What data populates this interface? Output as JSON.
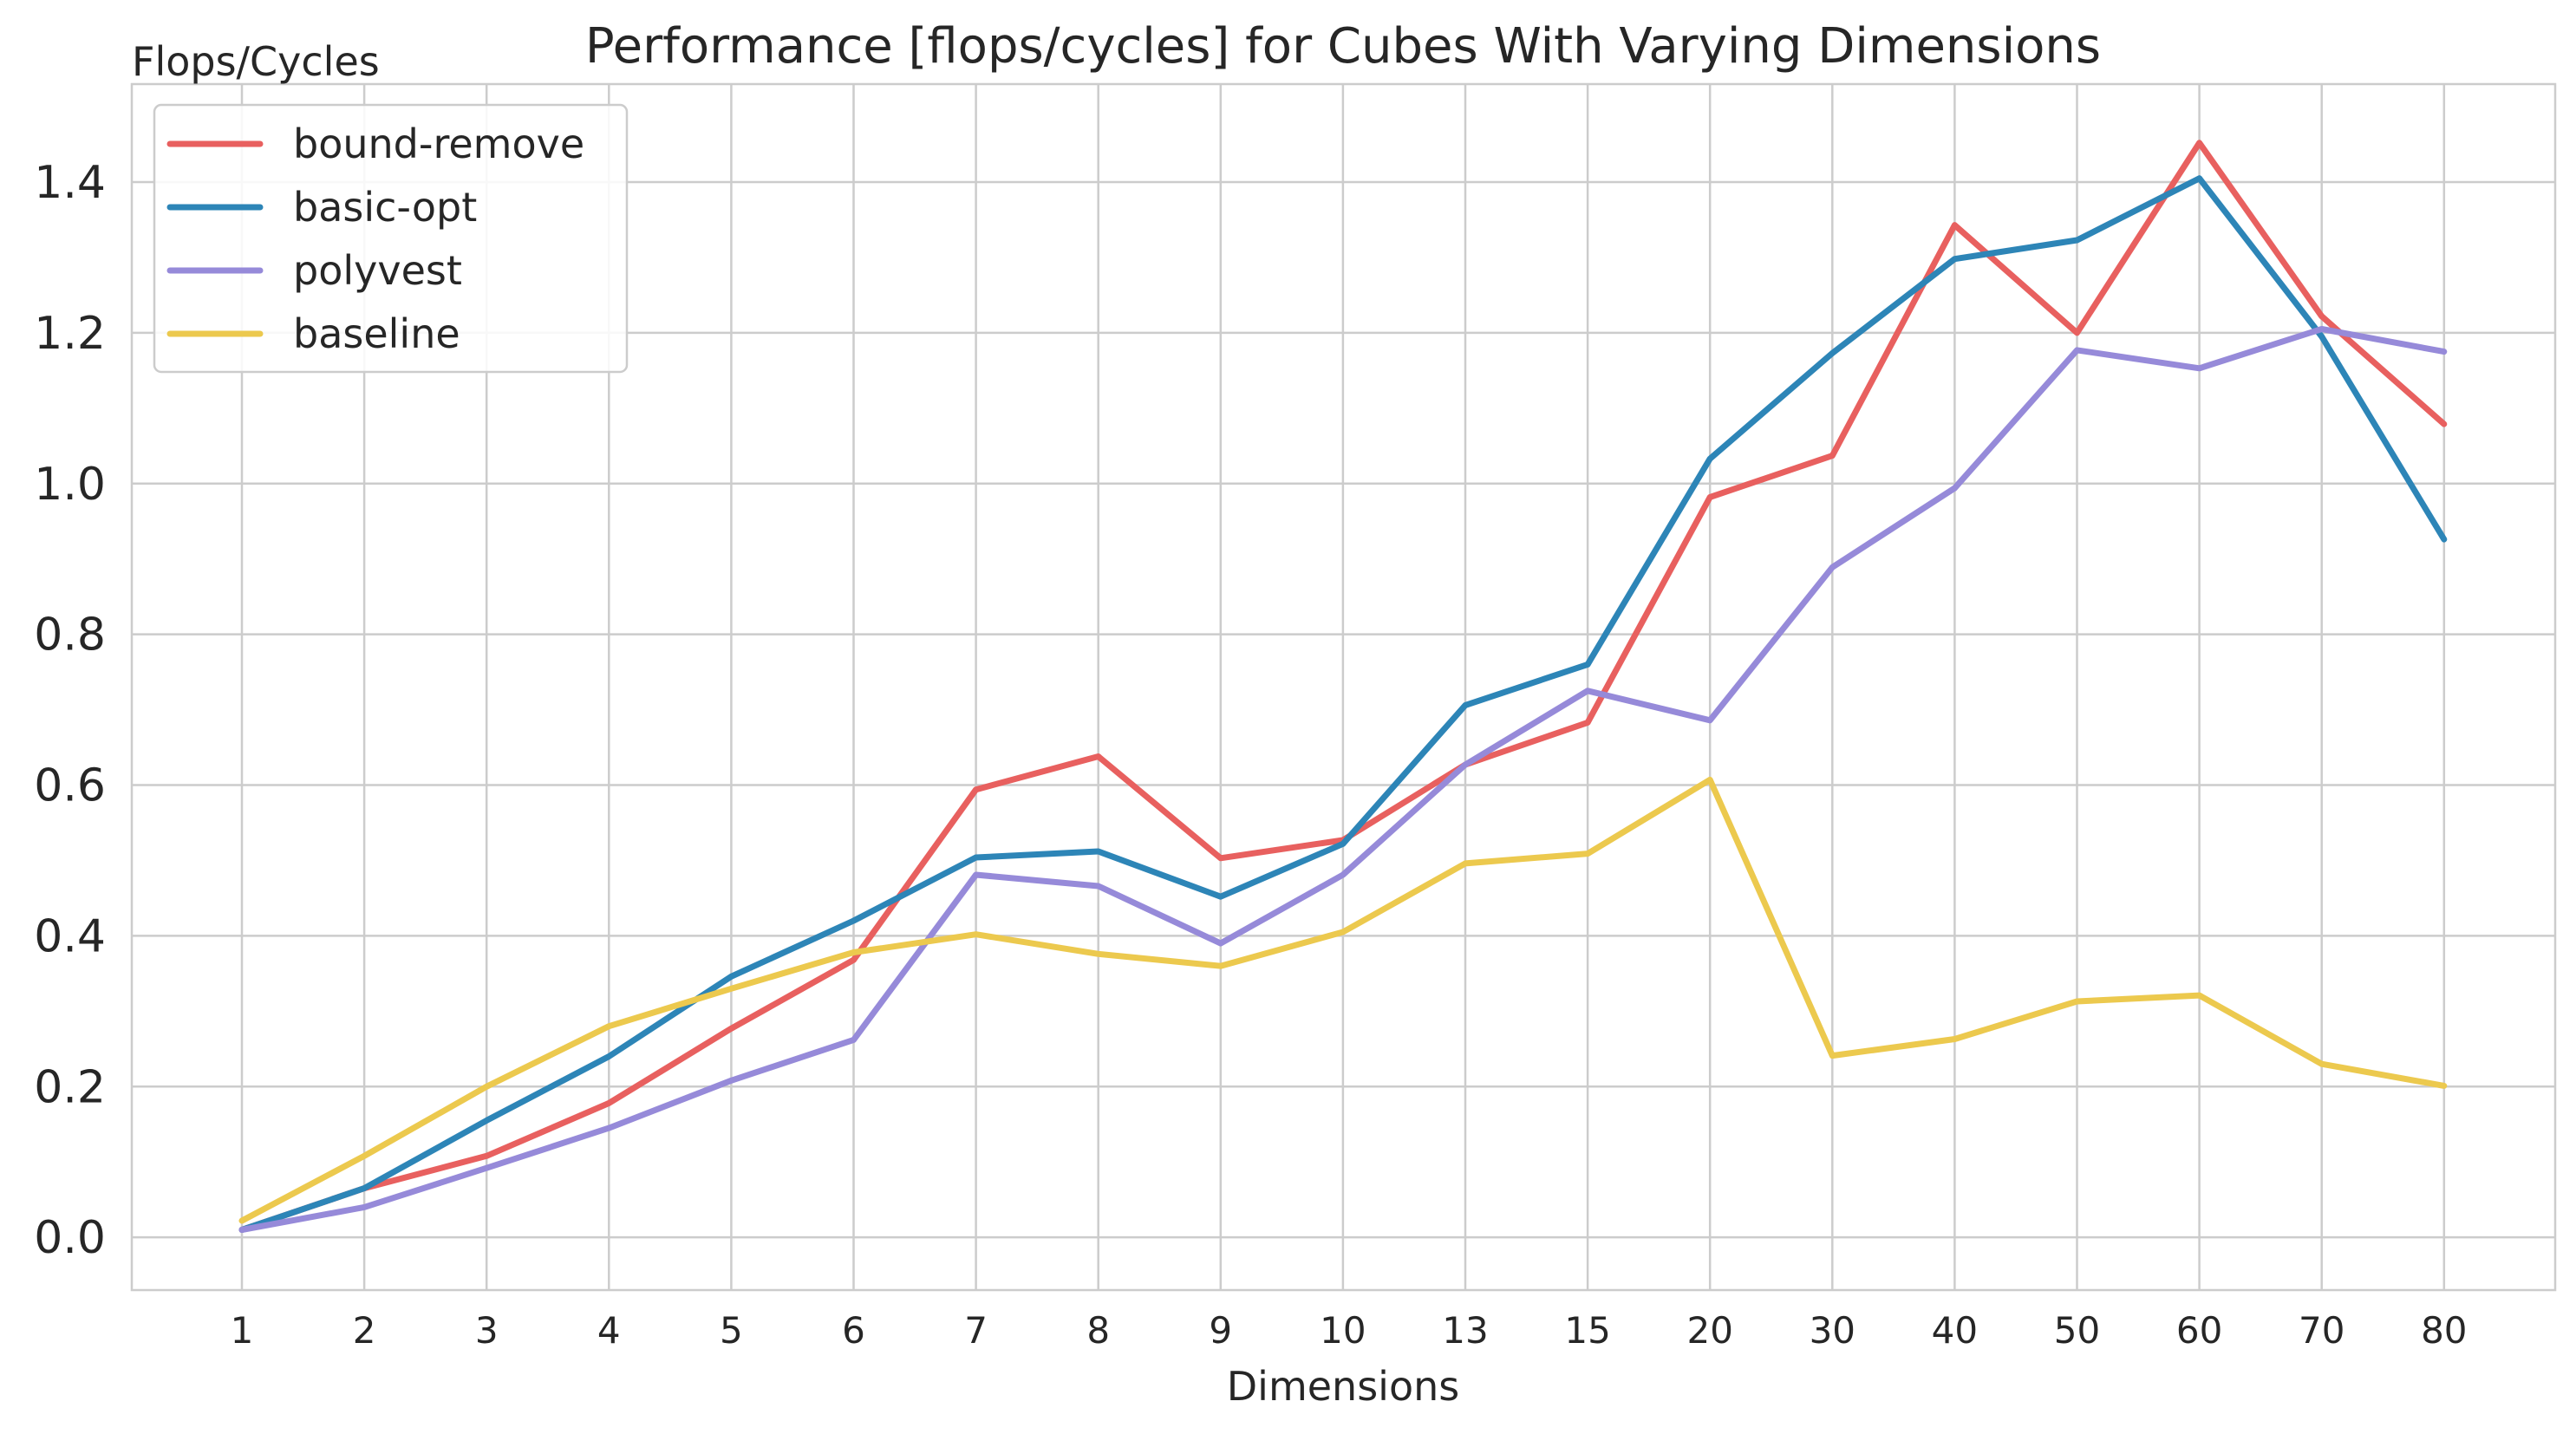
{
  "chart_data": {
    "type": "line",
    "title": "Performance [flops/cycles] for Cubes With Varying Dimensions",
    "xlabel": "Dimensions",
    "ylabel": "Flops/Cycles",
    "categories": [
      "1",
      "2",
      "3",
      "4",
      "5",
      "6",
      "7",
      "8",
      "9",
      "10",
      "13",
      "15",
      "20",
      "30",
      "40",
      "50",
      "60",
      "70",
      "80"
    ],
    "ylim": [
      -0.07,
      1.53
    ],
    "yticks": [
      "0.0",
      "0.2",
      "0.4",
      "0.6",
      "0.8",
      "1.0",
      "1.2",
      "1.4"
    ],
    "grid": true,
    "legend_position": "top-left",
    "series": [
      {
        "name": "bound-remove",
        "color": "#e8605f",
        "values": [
          0.01,
          0.065,
          0.108,
          0.178,
          0.277,
          0.368,
          0.594,
          0.638,
          0.503,
          0.527,
          0.627,
          0.683,
          0.982,
          1.037,
          1.343,
          1.2,
          1.452,
          1.222,
          1.079
        ]
      },
      {
        "name": "basic-opt",
        "color": "#2d85b7",
        "values": [
          0.01,
          0.065,
          0.155,
          0.24,
          0.346,
          0.42,
          0.504,
          0.512,
          0.452,
          0.522,
          0.706,
          0.76,
          1.033,
          1.173,
          1.298,
          1.323,
          1.405,
          1.195,
          0.926
        ]
      },
      {
        "name": "polyvest",
        "color": "#968ad9",
        "values": [
          0.01,
          0.04,
          0.092,
          0.145,
          0.208,
          0.262,
          0.481,
          0.466,
          0.39,
          0.481,
          0.627,
          0.725,
          0.686,
          0.889,
          0.994,
          1.177,
          1.153,
          1.205,
          1.175
        ]
      },
      {
        "name": "baseline",
        "color": "#ecc94e",
        "values": [
          0.022,
          0.108,
          0.2,
          0.28,
          0.33,
          0.378,
          0.402,
          0.376,
          0.36,
          0.405,
          0.496,
          0.509,
          0.607,
          0.241,
          0.263,
          0.313,
          0.321,
          0.23,
          0.201
        ]
      }
    ]
  }
}
